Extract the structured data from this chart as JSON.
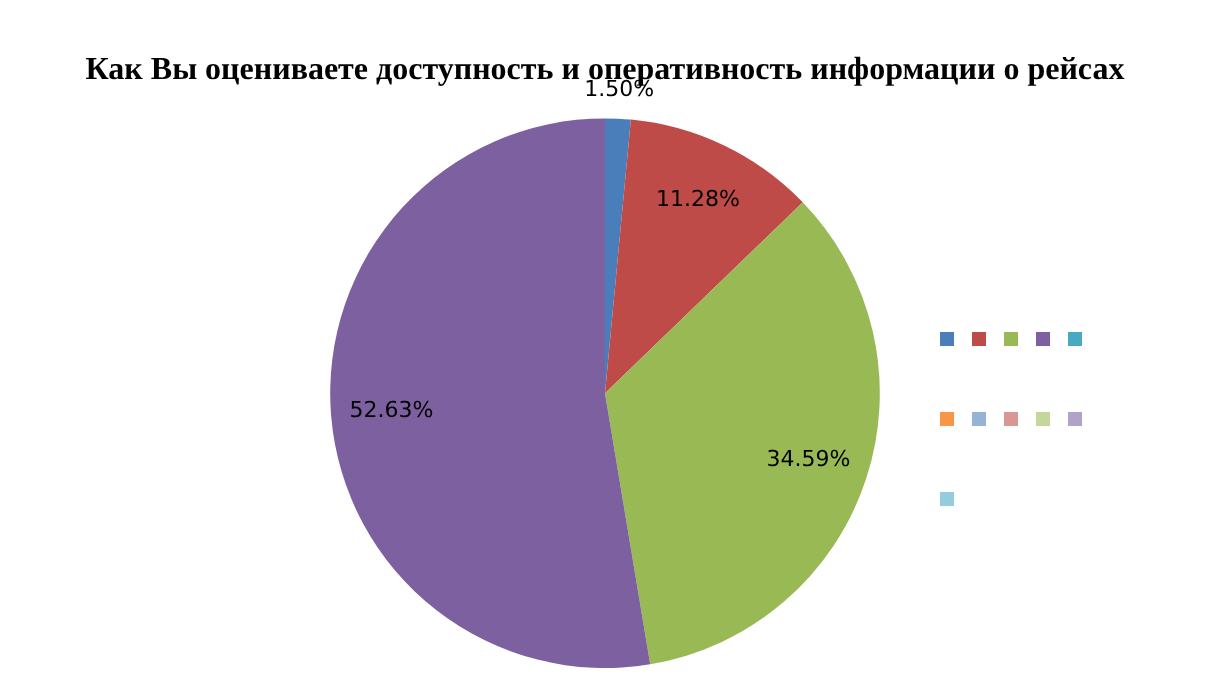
{
  "chart_data": {
    "type": "pie",
    "title": "Как Вы оцениваете доступность и оперативность информации о рейсах",
    "categories": [
      null,
      null,
      null,
      null,
      null,
      null,
      null,
      null,
      null,
      null,
      null
    ],
    "values": [
      1.5,
      11.28,
      34.59,
      52.63,
      0,
      0,
      0,
      0,
      0,
      0,
      0
    ],
    "value_labels": [
      "1.50%",
      "11.28%",
      "34.59%",
      "52.63%",
      null,
      null,
      null,
      null,
      null,
      null,
      null
    ],
    "colors": [
      "#4a7ebb",
      "#be4b48",
      "#98b954",
      "#7d60a0",
      "#46aac5",
      "#f79646",
      "#95b3d7",
      "#d99694",
      "#c3d69b",
      "#b3a2c7",
      "#93cddd"
    ]
  }
}
